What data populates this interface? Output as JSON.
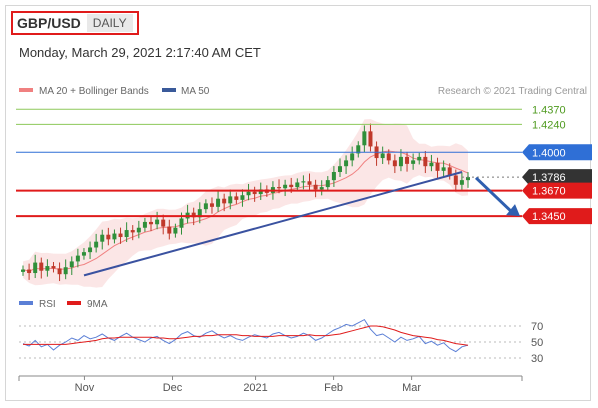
{
  "header": {
    "pair": "GBP/USD",
    "period": "DAILY"
  },
  "datetime": "Monday, March 29, 2021 2:17:40 AM CET",
  "credit": "Research © 2021 Trading Central",
  "legend_main": [
    {
      "label": "MA 20 + Bollinger Bands",
      "color": "#f08080"
    },
    {
      "label": "MA 50",
      "color": "#3a5a9a"
    }
  ],
  "legend_rsi": [
    {
      "label": "RSI",
      "color": "#5b7fd6"
    },
    {
      "label": "9MA",
      "color": "#e01b1b"
    }
  ],
  "colors": {
    "resistance": "#8dc85a",
    "pivot": "#2f6fd6",
    "support": "#e01b1b",
    "last": "#333333",
    "trend": "#3a52a0",
    "up": "#2f8f3a",
    "down": "#c0392b"
  },
  "chart_data": [
    {
      "type": "candlestick",
      "series_name": "GBP/USD",
      "x_ticks": [
        "Nov",
        "Dec",
        "2021",
        "Feb",
        "Mar"
      ],
      "y_lim": [
        1.29,
        1.445
      ],
      "levels": [
        {
          "label": "1.4370",
          "value": 1.437,
          "kind": "resistance"
        },
        {
          "label": "1.4240",
          "value": 1.424,
          "kind": "resistance"
        },
        {
          "label": "1.4000",
          "value": 1.4,
          "kind": "pivot"
        },
        {
          "label": "1.3786",
          "value": 1.3786,
          "kind": "last"
        },
        {
          "label": "1.3670",
          "value": 1.367,
          "kind": "support"
        },
        {
          "label": "1.3450",
          "value": 1.345,
          "kind": "support"
        }
      ],
      "last_price": 1.3786,
      "trendline": {
        "from": {
          "date": "2020-11-02",
          "price": 1.294
        },
        "to": {
          "date": "2021-03-24",
          "price": 1.383
        }
      },
      "forecast_arrow": {
        "from": 1.378,
        "to": 1.345
      },
      "close_path": [
        1.299,
        1.296,
        1.305,
        1.298,
        1.302,
        1.3,
        1.295,
        1.301,
        1.306,
        1.311,
        1.314,
        1.318,
        1.323,
        1.329,
        1.325,
        1.33,
        1.327,
        1.333,
        1.331,
        1.335,
        1.34,
        1.338,
        1.342,
        1.336,
        1.33,
        1.335,
        1.343,
        1.348,
        1.344,
        1.351,
        1.356,
        1.353,
        1.36,
        1.356,
        1.362,
        1.359,
        1.363,
        1.366,
        1.364,
        1.368,
        1.365,
        1.37,
        1.369,
        1.372,
        1.37,
        1.374,
        1.375,
        1.372,
        1.368,
        1.37,
        1.376,
        1.383,
        1.388,
        1.393,
        1.399,
        1.406,
        1.418,
        1.405,
        1.395,
        1.399,
        1.393,
        1.388,
        1.396,
        1.39,
        1.393,
        1.396,
        1.388,
        1.391,
        1.384,
        1.387,
        1.38,
        1.372,
        1.376,
        1.3786
      ]
    },
    {
      "type": "line",
      "title": "RSI",
      "y_ticks": [
        70,
        50,
        30
      ],
      "y_lim": [
        20,
        80
      ],
      "series": [
        {
          "name": "RSI",
          "color": "#5b7fd6",
          "values": [
            48,
            45,
            52,
            44,
            47,
            40,
            46,
            50,
            55,
            52,
            58,
            54,
            56,
            60,
            55,
            52,
            57,
            61,
            56,
            53,
            50,
            55,
            57,
            52,
            48,
            53,
            60,
            63,
            58,
            56,
            61,
            64,
            59,
            55,
            58,
            54,
            52,
            56,
            59,
            57,
            55,
            60,
            62,
            58,
            55,
            57,
            61,
            58,
            52,
            55,
            60,
            65,
            68,
            72,
            70,
            74,
            78,
            66,
            58,
            60,
            55,
            50,
            56,
            52,
            54,
            57,
            48,
            51,
            46,
            49,
            42,
            38,
            44,
            46
          ]
        },
        {
          "name": "9MA",
          "color": "#e01b1b",
          "values": [
            47,
            47,
            47,
            47,
            47,
            47,
            47,
            47,
            48,
            49,
            50,
            51,
            52,
            54,
            55,
            55,
            56,
            56,
            56,
            56,
            56,
            56,
            55,
            55,
            54,
            54,
            55,
            56,
            57,
            57,
            58,
            58,
            59,
            59,
            59,
            59,
            58,
            58,
            57,
            57,
            57,
            57,
            58,
            58,
            58,
            58,
            58,
            59,
            58,
            58,
            58,
            59,
            60,
            62,
            64,
            66,
            68,
            70,
            70,
            69,
            67,
            65,
            62,
            60,
            58,
            57,
            56,
            55,
            53,
            52,
            50,
            48,
            47,
            46
          ]
        }
      ]
    }
  ]
}
